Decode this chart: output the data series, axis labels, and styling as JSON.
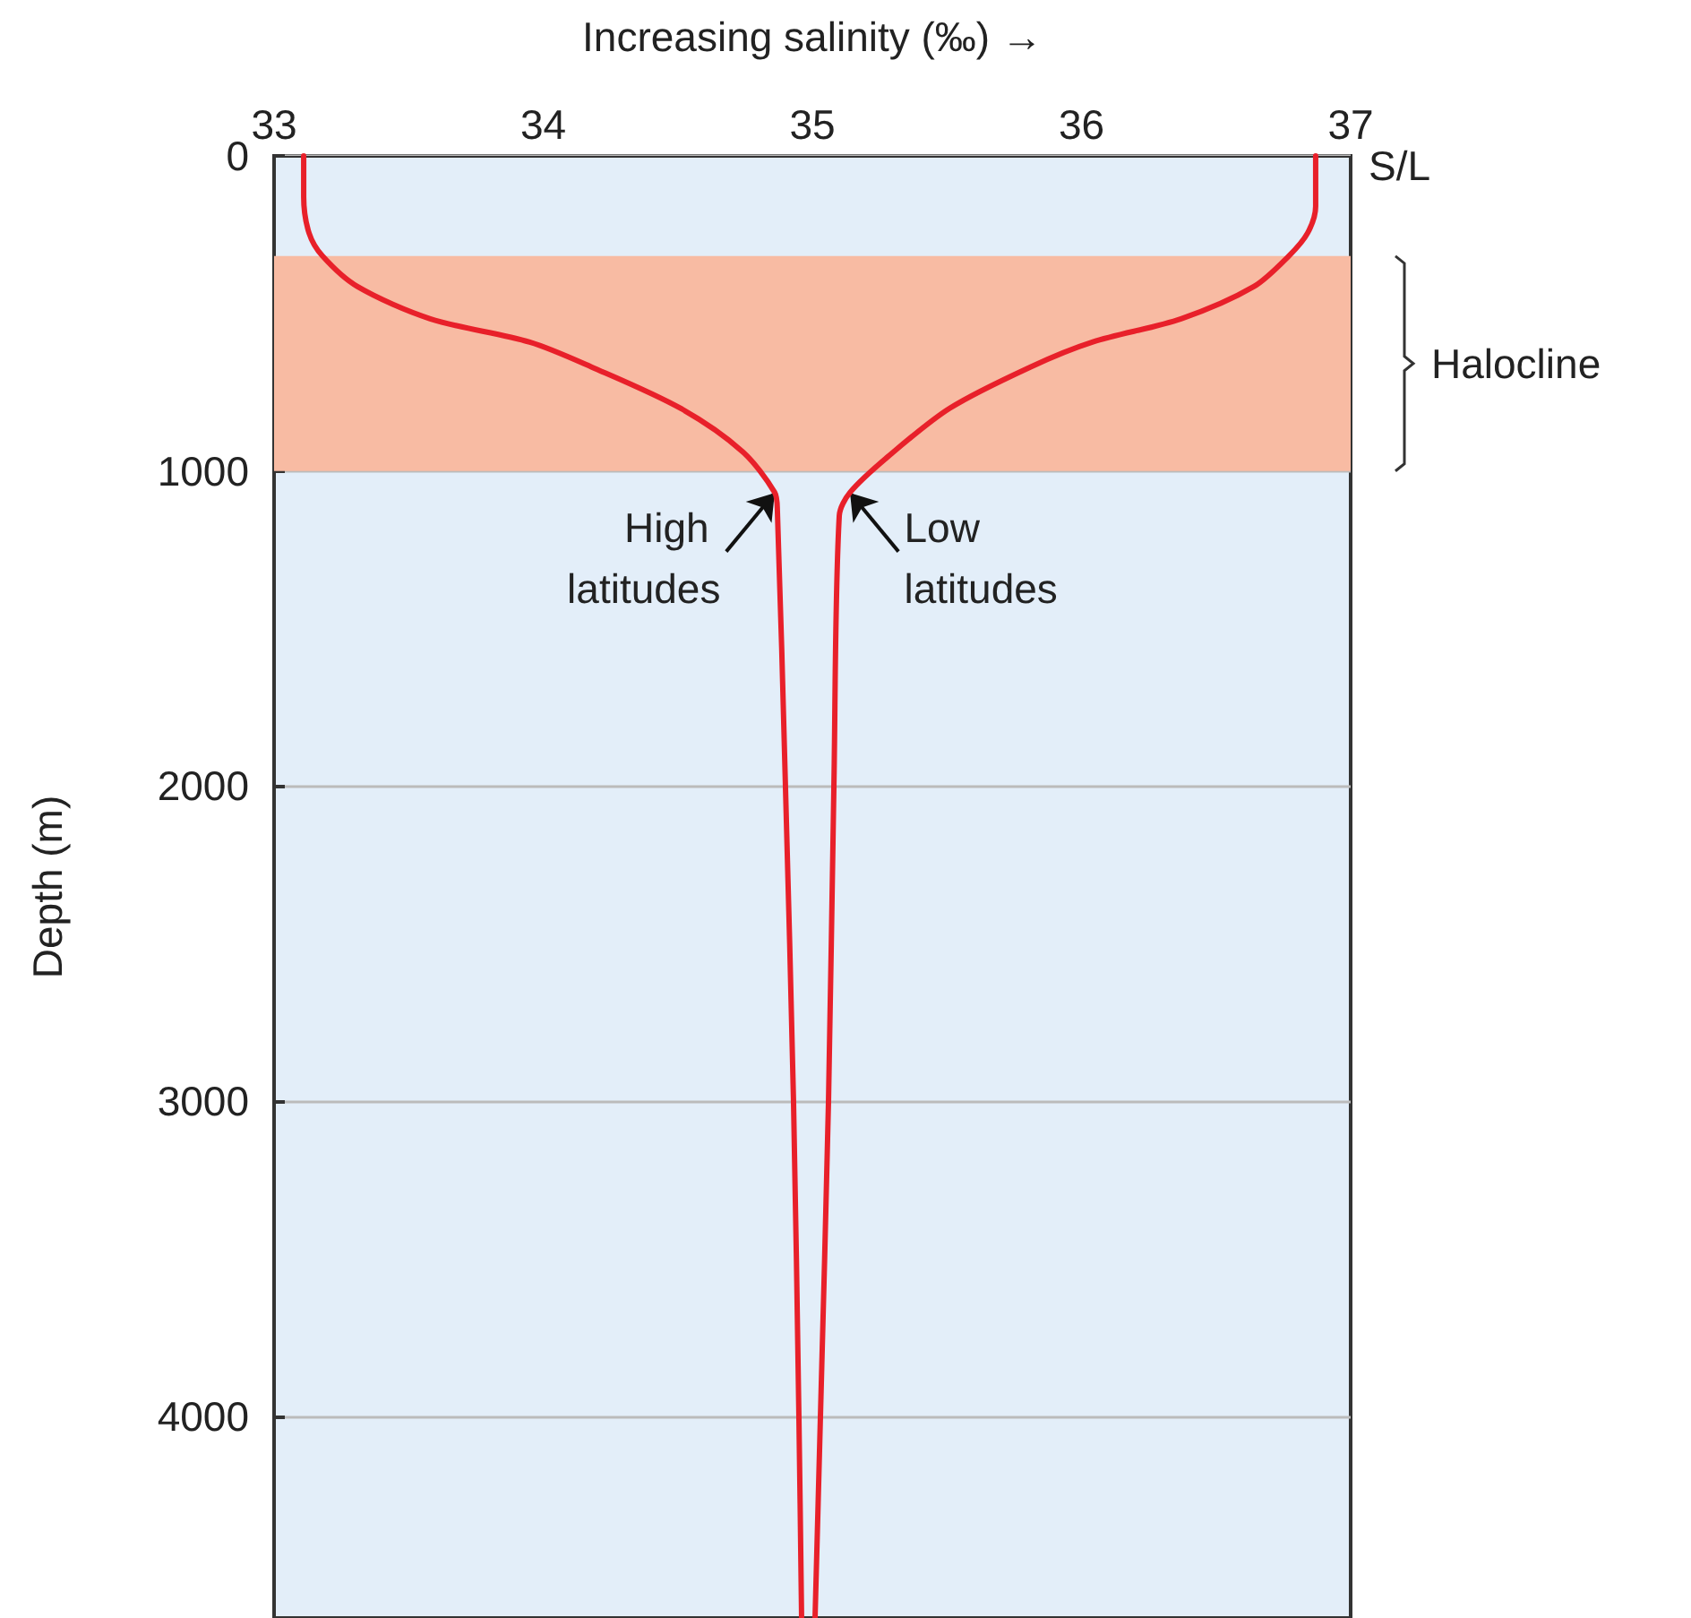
{
  "chart_data": {
    "type": "line",
    "xlabel": "Increasing salinity (‰) →",
    "ylabel": "Depth (m)",
    "xlim": [
      33,
      37
    ],
    "xticks": [
      33,
      34,
      35,
      36,
      37
    ],
    "ylim": [
      4640,
      0
    ],
    "yticks": [
      0,
      1000,
      2000,
      3000,
      4000
    ],
    "grid": "y",
    "marker": "none",
    "line_style": "solid",
    "series": [
      {
        "color": "#e8202a",
        "x": [
          33.11,
          33.11,
          33.13,
          33.18,
          33.31,
          33.58,
          33.95,
          34.18,
          34.51,
          34.74,
          34.86,
          34.87,
          34.9,
          34.93,
          34.95,
          34.96
        ],
        "values": [
          0,
          130,
          245,
          318,
          415,
          517,
          591,
          670,
          801,
          938,
          1068,
          1125,
          2000,
          3000,
          4000,
          4640
        ]
      },
      {
        "color": "#e8202a",
        "x": [
          36.87,
          36.87,
          36.84,
          36.77,
          36.64,
          36.37,
          36.04,
          35.81,
          35.51,
          35.28,
          35.14,
          35.1,
          35.08,
          35.06,
          35.03,
          35.01
        ],
        "values": [
          0,
          160,
          245,
          318,
          415,
          517,
          591,
          670,
          801,
          955,
          1068,
          1142,
          2000,
          3000,
          4000,
          4640
        ]
      }
    ],
    "bands": [
      {
        "axis": "y",
        "from": 318,
        "to": 1000,
        "label": "Halocline",
        "color": "#f8bba3"
      }
    ],
    "annotations": [
      "S/L",
      {
        "text": "High latitudes",
        "x": 34.86,
        "y": 1070
      },
      {
        "text": "Low latitudes",
        "x": 35.14,
        "y": 1070
      }
    ]
  }
}
